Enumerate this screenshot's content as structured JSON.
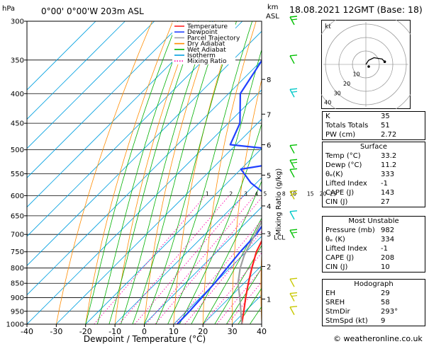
{
  "header": {
    "hpa_label": "hPa",
    "location": "0°00'  0°00'W  203m  ASL",
    "km_label": "km",
    "asl_label": "ASL",
    "datetime": "18.08.2021  12GMT  (Base: 18)"
  },
  "legend": [
    {
      "label": "Temperature",
      "color": "#ff2020",
      "style": "solid"
    },
    {
      "label": "Dewpoint",
      "color": "#2040ff",
      "style": "solid"
    },
    {
      "label": "Parcel Trajectory",
      "color": "#a0a0a0",
      "style": "solid"
    },
    {
      "label": "Dry Adiabat",
      "color": "#ff8c00",
      "style": "solid"
    },
    {
      "label": "Wet Adiabat",
      "color": "#00b000",
      "style": "solid"
    },
    {
      "label": "Isotherm",
      "color": "#00a0e0",
      "style": "solid"
    },
    {
      "label": "Mixing Ratio",
      "color": "#ff00aa",
      "style": "dotted"
    }
  ],
  "chart_data": {
    "type": "line",
    "title": "",
    "xlabel": "Dewpoint / Temperature (°C)",
    "ylabel": "hPa",
    "xlim": [
      -40,
      40
    ],
    "ylim": [
      1000,
      300
    ],
    "y_scale": "log",
    "pressure_ticks": [
      300,
      350,
      400,
      450,
      500,
      550,
      600,
      650,
      700,
      750,
      800,
      850,
      900,
      950,
      1000
    ],
    "temperature_ticks": [
      -40,
      -30,
      -20,
      -10,
      0,
      10,
      20,
      30,
      40
    ],
    "km_ticks": [
      {
        "label": "1",
        "p": 905
      },
      {
        "label": "2",
        "p": 795
      },
      {
        "label": "3",
        "p": 698
      },
      {
        "label": "4",
        "p": 625
      },
      {
        "label": "5",
        "p": 553
      },
      {
        "label": "6",
        "p": 490
      },
      {
        "label": "7",
        "p": 434
      },
      {
        "label": "8",
        "p": 378
      }
    ],
    "lcl": {
      "label": "LCL",
      "p": 707
    },
    "right_axis_label": "Mixing Ratio (g/kg)",
    "mixing_ratio_labels": [
      "1",
      "2",
      "3",
      "4",
      "5",
      "8",
      "10",
      "15",
      "20",
      "25"
    ],
    "mixing_ratio_values": [
      1,
      2,
      3,
      4,
      5,
      8,
      10,
      15,
      20,
      25
    ],
    "series": [
      {
        "name": "Temperature",
        "color": "#ff2020",
        "points": [
          [
            1000,
            33.2
          ],
          [
            950,
            29.5
          ],
          [
            900,
            25.5
          ],
          [
            850,
            21.5
          ],
          [
            800,
            17.5
          ],
          [
            750,
            13.5
          ],
          [
            700,
            10.5
          ],
          [
            650,
            6.5
          ],
          [
            600,
            3.0
          ],
          [
            550,
            -1.5
          ],
          [
            520,
            -4.5
          ],
          [
            500,
            -7.5
          ],
          [
            450,
            -12.5
          ],
          [
            400,
            -18.5
          ],
          [
            350,
            -26.5
          ],
          [
            300,
            -35.0
          ]
        ]
      },
      {
        "name": "Dewpoint",
        "color": "#2040ff",
        "points": [
          [
            1000,
            11.2
          ],
          [
            950,
            11.0
          ],
          [
            900,
            10.5
          ],
          [
            850,
            10.0
          ],
          [
            800,
            9.0
          ],
          [
            750,
            8.0
          ],
          [
            700,
            7.5
          ],
          [
            650,
            5.5
          ],
          [
            600,
            -2.0
          ],
          [
            570,
            -12.0
          ],
          [
            540,
            -20.0
          ],
          [
            525,
            -7.5
          ],
          [
            500,
            -14.0
          ],
          [
            490,
            -32.0
          ],
          [
            450,
            -36.0
          ],
          [
            400,
            -46.0
          ],
          [
            350,
            -50.0
          ],
          [
            300,
            -53.0
          ]
        ]
      },
      {
        "name": "Parcel Trajectory",
        "color": "#a0a0a0",
        "points": [
          [
            1000,
            33.2
          ],
          [
            950,
            28.5
          ],
          [
            900,
            23.5
          ],
          [
            850,
            18.0
          ],
          [
            800,
            13.5
          ],
          [
            760,
            10.5
          ],
          [
            707,
            7.5
          ],
          [
            650,
            4.0
          ],
          [
            600,
            0.5
          ],
          [
            550,
            -3.5
          ],
          [
            500,
            -8.5
          ],
          [
            450,
            -14.0
          ],
          [
            400,
            -20.5
          ],
          [
            350,
            -28.0
          ],
          [
            300,
            -37.0
          ]
        ]
      }
    ]
  },
  "wind_barb_colors": [
    "#00c000",
    "#00c000",
    "#00c8c8",
    "#00c000",
    "#00c000",
    "#00c000",
    "#c0c000",
    "#00c8c8",
    "#00c000",
    "#c8c800",
    "#c8c800",
    "#c8c800"
  ],
  "hodograph": {
    "corner_label": "kt",
    "ring_labels": [
      "10",
      "20",
      "30",
      "40"
    ],
    "trace_kt": [
      [
        0,
        0
      ],
      [
        2,
        3
      ],
      [
        6,
        5
      ],
      [
        12,
        4
      ],
      [
        14,
        2
      ]
    ]
  },
  "indices": {
    "k_label": "K",
    "k_value": "35",
    "tt_label": "Totals Totals",
    "tt_value": "51",
    "pw_label": "PW (cm)",
    "pw_value": "2.72"
  },
  "surface": {
    "title": "Surface",
    "rows": [
      {
        "label": "Temp (°C)",
        "value": "33.2"
      },
      {
        "label": "Dewp (°C)",
        "value": "11.2"
      },
      {
        "label": "θₑ(K)",
        "value": "333"
      },
      {
        "label": "Lifted Index",
        "value": "-1"
      },
      {
        "label": "CAPE (J)",
        "value": "143"
      },
      {
        "label": "CIN (J)",
        "value": "27"
      }
    ]
  },
  "most_unstable": {
    "title": "Most Unstable",
    "rows": [
      {
        "label": "Pressure (mb)",
        "value": "982"
      },
      {
        "label": "θₑ (K)",
        "value": "334"
      },
      {
        "label": "Lifted Index",
        "value": "-1"
      },
      {
        "label": "CAPE (J)",
        "value": "208"
      },
      {
        "label": "CIN (J)",
        "value": "10"
      }
    ]
  },
  "hodo_table": {
    "title": "Hodograph",
    "rows": [
      {
        "label": "EH",
        "value": "29"
      },
      {
        "label": "SREH",
        "value": "58"
      },
      {
        "label": "StmDir",
        "value": "293°"
      },
      {
        "label": "StmSpd (kt)",
        "value": "9"
      }
    ]
  },
  "footer": "© weatheronline.co.uk"
}
